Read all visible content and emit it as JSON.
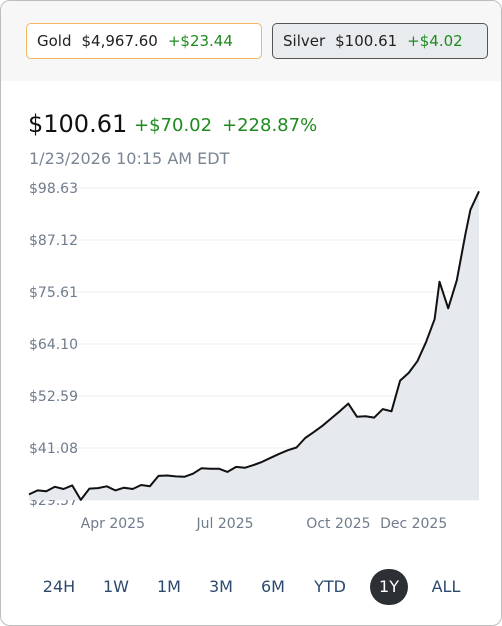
{
  "metals": [
    {
      "name": "Gold",
      "price": "$4,967.60",
      "change": "+$23.44"
    },
    {
      "name": "Silver",
      "price": "$100.61",
      "change": "+$4.02"
    }
  ],
  "selected": {
    "price": "$100.61",
    "change": "+$70.02",
    "change_pct": "+228.87%",
    "timestamp": "1/23/2026 10:15 AM EDT"
  },
  "ranges": [
    "24H",
    "1W",
    "1M",
    "3M",
    "6M",
    "YTD",
    "1Y",
    "ALL"
  ],
  "active_range": "1Y",
  "colors": {
    "positive": "#1f8a1f",
    "line": "#111111",
    "area": "#e6e9ed",
    "grid": "#eeeeee"
  },
  "chart_data": {
    "type": "area",
    "title": "",
    "xlabel": "",
    "ylabel": "",
    "ylim": [
      29.57,
      98.63
    ],
    "yticks": [
      "$98.63",
      "$87.12",
      "$75.61",
      "$64.10",
      "$52.59",
      "$41.08",
      "$29.57"
    ],
    "xticks": [
      {
        "label": "Apr 2025",
        "date": "2025-04-01"
      },
      {
        "label": "Jul 2025",
        "date": "2025-07-01"
      },
      {
        "label": "Oct 2025",
        "date": "2025-10-01"
      },
      {
        "label": "Dec 2025",
        "date": "2025-12-01"
      }
    ],
    "grid": true,
    "series": [
      {
        "points": [
          [
            "2025-01-23",
            30.8
          ],
          [
            "2025-01-30",
            31.7
          ],
          [
            "2025-02-06",
            31.5
          ],
          [
            "2025-02-13",
            32.5
          ],
          [
            "2025-02-20",
            32.0
          ],
          [
            "2025-02-27",
            32.8
          ],
          [
            "2025-03-06",
            29.6
          ],
          [
            "2025-03-13",
            32.1
          ],
          [
            "2025-03-20",
            32.2
          ],
          [
            "2025-03-27",
            32.6
          ],
          [
            "2025-04-03",
            31.7
          ],
          [
            "2025-04-10",
            32.3
          ],
          [
            "2025-04-17",
            32.0
          ],
          [
            "2025-04-24",
            32.9
          ],
          [
            "2025-05-01",
            32.6
          ],
          [
            "2025-05-08",
            34.9
          ],
          [
            "2025-05-15",
            35.0
          ],
          [
            "2025-05-22",
            34.8
          ],
          [
            "2025-05-29",
            34.7
          ],
          [
            "2025-06-05",
            35.4
          ],
          [
            "2025-06-12",
            36.6
          ],
          [
            "2025-06-19",
            36.5
          ],
          [
            "2025-06-26",
            36.5
          ],
          [
            "2025-07-03",
            35.8
          ],
          [
            "2025-07-10",
            36.9
          ],
          [
            "2025-07-17",
            36.7
          ],
          [
            "2025-07-24",
            37.3
          ],
          [
            "2025-07-31",
            38.0
          ],
          [
            "2025-08-07",
            38.9
          ],
          [
            "2025-08-14",
            39.8
          ],
          [
            "2025-08-21",
            40.6
          ],
          [
            "2025-08-28",
            41.2
          ],
          [
            "2025-09-04",
            43.3
          ],
          [
            "2025-09-11",
            44.6
          ],
          [
            "2025-09-18",
            46.0
          ],
          [
            "2025-09-25",
            47.6
          ],
          [
            "2025-10-02",
            49.2
          ],
          [
            "2025-10-09",
            50.9
          ],
          [
            "2025-10-16",
            48.0
          ],
          [
            "2025-10-23",
            48.1
          ],
          [
            "2025-10-30",
            47.8
          ],
          [
            "2025-11-06",
            49.7
          ],
          [
            "2025-11-13",
            49.2
          ],
          [
            "2025-11-20",
            56.0
          ],
          [
            "2025-11-27",
            57.7
          ],
          [
            "2025-12-04",
            60.3
          ],
          [
            "2025-12-11",
            64.5
          ],
          [
            "2025-12-18",
            69.6
          ],
          [
            "2025-12-22",
            77.9
          ],
          [
            "2025-12-29",
            72.0
          ],
          [
            "2026-01-05",
            78.2
          ],
          [
            "2026-01-12",
            88.4
          ],
          [
            "2026-01-16",
            93.8
          ],
          [
            "2026-01-23",
            97.9
          ]
        ]
      }
    ]
  }
}
